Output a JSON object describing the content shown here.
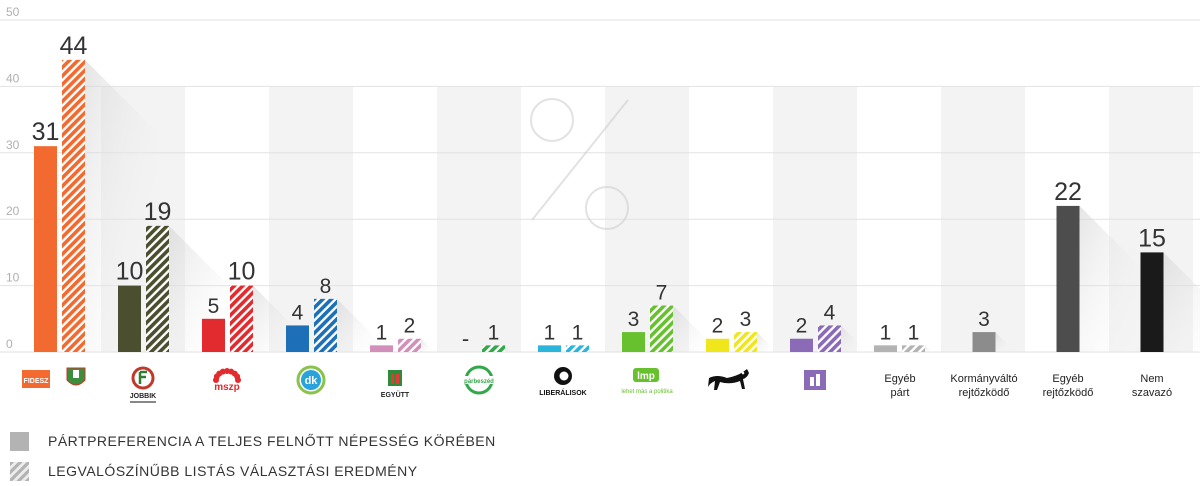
{
  "chart_data": {
    "type": "bar",
    "ylim": [
      0,
      50
    ],
    "yticks": [
      0,
      10,
      20,
      30,
      40,
      50
    ],
    "grid": true,
    "watermark": "%",
    "series": [
      {
        "name": "PÁRTPREFERENCIA A TELJES FELNŐTT NÉPESSÉG KÖRÉBEN",
        "style": "solid"
      },
      {
        "name": "LEGVALÓSZÍNŰBB LISTÁS VÁLASZTÁSI EREDMÉNY",
        "style": "striped"
      }
    ],
    "categories": [
      {
        "key": "fidesz",
        "logo": "FIDESZ",
        "solid": 31,
        "striped": 44,
        "solid_label": "31",
        "striped_label": "44",
        "color": "#f26a30"
      },
      {
        "key": "jobbik",
        "logo": "JOBBIK",
        "solid": 10,
        "striped": 19,
        "solid_label": "10",
        "striped_label": "19",
        "color": "#4c4f2f"
      },
      {
        "key": "mszp",
        "logo": "mszp",
        "solid": 5,
        "striped": 10,
        "solid_label": "5",
        "striped_label": "10",
        "color": "#e22b2f"
      },
      {
        "key": "dk",
        "logo": "dk",
        "solid": 4,
        "striped": 8,
        "solid_label": "4",
        "striped_label": "8",
        "color": "#1d6fb8"
      },
      {
        "key": "egyutt",
        "logo": "EGYÜTT",
        "solid": 1,
        "striped": 2,
        "solid_label": "1",
        "striped_label": "2",
        "color": "#d18fb9"
      },
      {
        "key": "parbeszed",
        "logo": "párbeszéd",
        "solid": 0,
        "striped": 1,
        "solid_label": "-",
        "striped_label": "1",
        "color": "#33a84a"
      },
      {
        "key": "liberalisok",
        "logo": "LIBERÁLISOK",
        "solid": 1,
        "striped": 1,
        "solid_label": "1",
        "striped_label": "1",
        "color": "#2bb5dc"
      },
      {
        "key": "lmp",
        "logo": "lmp",
        "logo_sub": "lehet más a politika",
        "solid": 3,
        "striped": 7,
        "solid_label": "3",
        "striped_label": "7",
        "color": "#67c12f"
      },
      {
        "key": "mkkp",
        "logo": "dog",
        "solid": 2,
        "striped": 3,
        "solid_label": "2",
        "striped_label": "3",
        "color": "#f0e61c"
      },
      {
        "key": "momentum",
        "logo": "momentum",
        "solid": 2,
        "striped": 4,
        "solid_label": "2",
        "striped_label": "4",
        "color": "#8b6bb8"
      },
      {
        "key": "egyeb_part",
        "label": "Egyéb\npárt",
        "solid": 1,
        "striped": 1,
        "solid_label": "1",
        "striped_label": "1",
        "color": "#b3b3b3"
      },
      {
        "key": "kormanyvalto",
        "label": "Kormányváltó\nrejtőzködő",
        "single": 3,
        "single_label": "3",
        "color": "#8c8c8c"
      },
      {
        "key": "egyeb_rejt",
        "label": "Egyéb\nrejtőzködő",
        "single": 22,
        "single_label": "22",
        "color": "#4d4d4d"
      },
      {
        "key": "nem_szavazo",
        "label": "Nem\nszavazó",
        "single": 15,
        "single_label": "15",
        "color": "#1a1a1a"
      }
    ]
  },
  "legend": {
    "solid_label": "PÁRTPREFERENCIA A TELJES FELNŐTT NÉPESSÉG KÖRÉBEN",
    "striped_label": "LEGVALÓSZÍNŰBB LISTÁS VÁLASZTÁSI EREDMÉNY",
    "solid_color": "#b3b3b3",
    "striped_color": "#b3b3b3"
  }
}
